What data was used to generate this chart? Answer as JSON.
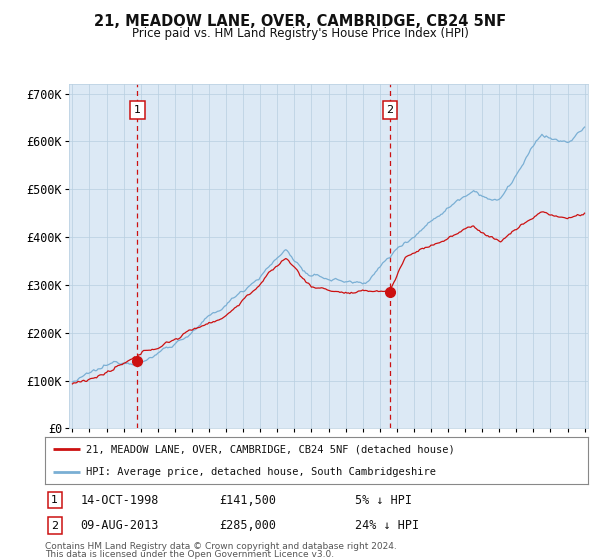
{
  "title": "21, MEADOW LANE, OVER, CAMBRIDGE, CB24 5NF",
  "subtitle": "Price paid vs. HM Land Registry's House Price Index (HPI)",
  "background_color": "#ffffff",
  "plot_bg_color": "#dce9f5",
  "grid_color": "#b8cfe0",
  "hpi_color": "#7aafd4",
  "price_color": "#cc1111",
  "ylim": [
    0,
    720000
  ],
  "yticks": [
    0,
    100000,
    200000,
    300000,
    400000,
    500000,
    600000,
    700000
  ],
  "ytick_labels": [
    "£0",
    "£100K",
    "£200K",
    "£300K",
    "£400K",
    "£500K",
    "£600K",
    "£700K"
  ],
  "sale1_year": 1998.79,
  "sale1_price": 141500,
  "sale1_date": "14-OCT-1998",
  "sale1_info": "5% ↓ HPI",
  "sale2_year": 2013.6,
  "sale2_price": 285000,
  "sale2_date": "09-AUG-2013",
  "sale2_info": "24% ↓ HPI",
  "legend_label1": "21, MEADOW LANE, OVER, CAMBRIDGE, CB24 5NF (detached house)",
  "legend_label2": "HPI: Average price, detached house, South Cambridgeshire",
  "footer1": "Contains HM Land Registry data © Crown copyright and database right 2024.",
  "footer2": "This data is licensed under the Open Government Licence v3.0.",
  "x_start_year": 1995,
  "x_end_year": 2025
}
